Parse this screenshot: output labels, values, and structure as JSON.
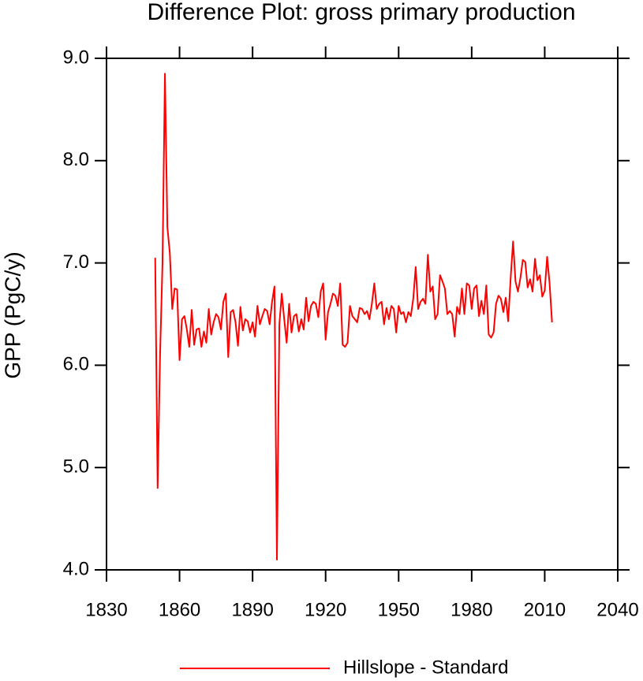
{
  "chart_data": {
    "type": "line",
    "title": "Difference Plot: gross primary production",
    "y_label": "GPP  (PgC/y)",
    "x": [
      1850,
      1851,
      1852,
      1853,
      1854,
      1855,
      1856,
      1857,
      1858,
      1859,
      1860,
      1861,
      1862,
      1863,
      1864,
      1865,
      1866,
      1867,
      1868,
      1869,
      1870,
      1871,
      1872,
      1873,
      1874,
      1875,
      1876,
      1877,
      1878,
      1879,
      1880,
      1881,
      1882,
      1883,
      1884,
      1885,
      1886,
      1887,
      1888,
      1889,
      1890,
      1891,
      1892,
      1893,
      1894,
      1895,
      1896,
      1897,
      1898,
      1899,
      1900,
      1901,
      1902,
      1903,
      1904,
      1905,
      1906,
      1907,
      1908,
      1909,
      1910,
      1911,
      1912,
      1913,
      1914,
      1915,
      1916,
      1917,
      1918,
      1919,
      1920,
      1921,
      1922,
      1923,
      1924,
      1925,
      1926,
      1927,
      1928,
      1929,
      1930,
      1931,
      1932,
      1933,
      1934,
      1935,
      1936,
      1937,
      1938,
      1939,
      1940,
      1941,
      1942,
      1943,
      1944,
      1945,
      1946,
      1947,
      1948,
      1949,
      1950,
      1951,
      1952,
      1953,
      1954,
      1955,
      1956,
      1957,
      1958,
      1959,
      1960,
      1961,
      1962,
      1963,
      1964,
      1965,
      1966,
      1967,
      1968,
      1969,
      1970,
      1971,
      1972,
      1973,
      1974,
      1975,
      1976,
      1977,
      1978,
      1979,
      1980,
      1981,
      1982,
      1983,
      1984,
      1985,
      1986,
      1987,
      1988,
      1989,
      1990,
      1991,
      1992,
      1993,
      1994,
      1995,
      1996,
      1997,
      1998,
      1999,
      2000,
      2001,
      2002,
      2003,
      2004,
      2005,
      2006,
      2007,
      2008,
      2009,
      2010,
      2011,
      2012,
      2013
    ],
    "series": [
      {
        "name": "Hillslope - Standard",
        "color": "#ff0000",
        "values": [
          7.05,
          4.8,
          6.1,
          7.0,
          8.85,
          7.35,
          7.1,
          6.55,
          6.75,
          6.74,
          6.05,
          6.45,
          6.48,
          6.35,
          6.18,
          6.54,
          6.2,
          6.35,
          6.36,
          6.18,
          6.33,
          6.22,
          6.55,
          6.3,
          6.42,
          6.5,
          6.47,
          6.35,
          6.62,
          6.7,
          6.08,
          6.52,
          6.54,
          6.42,
          6.19,
          6.57,
          6.34,
          6.45,
          6.43,
          6.32,
          6.42,
          6.28,
          6.58,
          6.4,
          6.48,
          6.55,
          6.53,
          6.4,
          6.62,
          6.77,
          4.1,
          6.4,
          6.7,
          6.45,
          6.22,
          6.6,
          6.32,
          6.48,
          6.5,
          6.33,
          6.45,
          6.35,
          6.66,
          6.43,
          6.58,
          6.62,
          6.6,
          6.47,
          6.72,
          6.8,
          6.25,
          6.52,
          6.6,
          6.7,
          6.68,
          6.58,
          6.8,
          6.2,
          6.18,
          6.22,
          6.58,
          6.48,
          6.45,
          6.42,
          6.56,
          6.55,
          6.5,
          6.53,
          6.45,
          6.6,
          6.8,
          6.55,
          6.6,
          6.62,
          6.4,
          6.56,
          6.45,
          6.58,
          6.55,
          6.32,
          6.58,
          6.5,
          6.52,
          6.42,
          6.52,
          6.48,
          6.65,
          6.96,
          6.55,
          6.62,
          6.65,
          6.6,
          7.08,
          6.72,
          6.77,
          6.45,
          6.5,
          6.88,
          6.82,
          6.75,
          6.5,
          6.53,
          6.5,
          6.28,
          6.57,
          6.5,
          6.75,
          6.5,
          6.8,
          6.78,
          6.55,
          6.75,
          6.78,
          6.48,
          6.63,
          6.5,
          6.78,
          6.3,
          6.27,
          6.32,
          6.6,
          6.68,
          6.65,
          6.52,
          6.66,
          6.43,
          6.85,
          7.21,
          6.82,
          6.72,
          6.85,
          7.03,
          7.01,
          6.76,
          6.84,
          6.72,
          7.04,
          6.83,
          6.88,
          6.67,
          6.73,
          7.06,
          6.8,
          6.42
        ]
      }
    ],
    "xlim": [
      1830,
      2040
    ],
    "xticks": [
      1830,
      1860,
      1890,
      1920,
      1950,
      1980,
      2010,
      2040
    ],
    "ylim": [
      4,
      9
    ],
    "yticks": [
      {
        "value": 4,
        "label": "4.0"
      },
      {
        "value": 5,
        "label": "5.0"
      },
      {
        "value": 6,
        "label": "6.0"
      },
      {
        "value": 7,
        "label": "7.0"
      },
      {
        "value": 8,
        "label": "8.0"
      },
      {
        "value": 9,
        "label": "9.0"
      }
    ],
    "legend": "bottom"
  }
}
